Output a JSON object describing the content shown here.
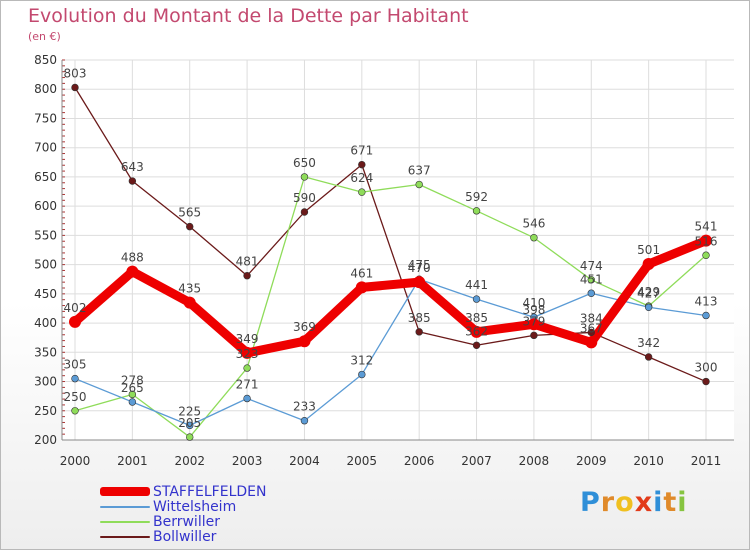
{
  "chart_data": {
    "type": "line",
    "title": "Evolution du Montant de la Dette par Habitant",
    "subtitle": "(en €)",
    "x": [
      "2000",
      "2001",
      "2002",
      "2003",
      "2004",
      "2005",
      "2006",
      "2007",
      "2008",
      "2009",
      "2010",
      "2011"
    ],
    "ylim": [
      200,
      850
    ],
    "yticks": [
      200,
      250,
      300,
      350,
      400,
      450,
      500,
      550,
      600,
      650,
      700,
      750,
      800,
      850
    ],
    "grid": true,
    "legend_position": "bottom-left",
    "series": [
      {
        "name": "Bollwiller",
        "color": "#6b1a1a",
        "values": [
          803,
          643,
          565,
          481,
          590,
          671,
          385,
          362,
          379,
          384,
          342,
          300
        ]
      },
      {
        "name": "Berrwiller",
        "color": "#8fdc5a",
        "values": [
          250,
          278,
          205,
          323,
          650,
          624,
          637,
          592,
          546,
          474,
          429,
          516
        ]
      },
      {
        "name": "Wittelsheim",
        "color": "#5b9bd5",
        "values": [
          305,
          265,
          225,
          271,
          233,
          312,
          475,
          441,
          410,
          451,
          427,
          413
        ]
      },
      {
        "name": "STAFFELFELDEN",
        "color": "#ee0000",
        "values": [
          402,
          488,
          435,
          349,
          369,
          461,
          470,
          385,
          398,
          367,
          501,
          541
        ]
      }
    ]
  },
  "legend": [
    {
      "name": "STAFFELFELDEN",
      "color": "#ee0000"
    },
    {
      "name": "Wittelsheim",
      "color": "#5b9bd5"
    },
    {
      "name": "Berrwiller",
      "color": "#8fdc5a"
    },
    {
      "name": "Bollwiller",
      "color": "#6b1a1a"
    }
  ],
  "logo": {
    "text": "Proxiti",
    "letter_colors": [
      "#2f8fd8",
      "#e08a2a",
      "#f0c020",
      "#e23b1a",
      "#2f8fd8",
      "#e08a2a",
      "#86c440"
    ]
  }
}
